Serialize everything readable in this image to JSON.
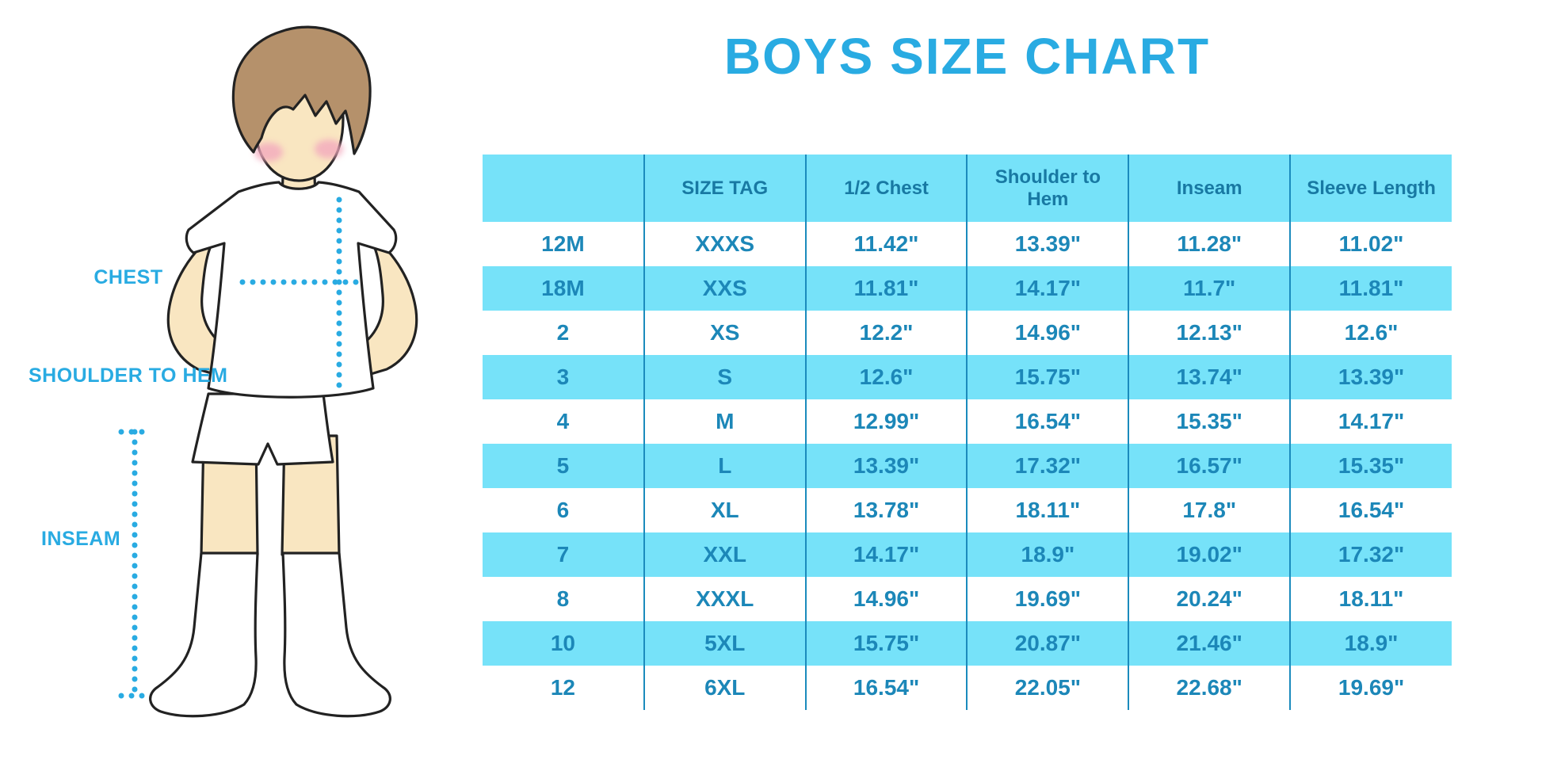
{
  "title": "BOYS SIZE CHART",
  "colors": {
    "accent": "#29ABE2",
    "table_bg": "#76E2F9",
    "header_text": "#1879A3",
    "cell_text": "#1C87B8",
    "divider": "#1B8BBD",
    "skin": "#F9E6C1",
    "hair": "#B5916B",
    "blush": "#F3A9BE",
    "outline": "#222222"
  },
  "figure": {
    "labels": {
      "chest": "CHEST",
      "shoulder_to_hem": "SHOULDER TO HEM",
      "inseam": "INSEAM"
    }
  },
  "chart_data": {
    "type": "table",
    "title": "BOYS SIZE CHART",
    "columns": [
      "",
      "SIZE TAG",
      "1/2 Chest",
      "Shoulder to Hem",
      "Inseam",
      "Sleeve Length"
    ],
    "rows": [
      [
        "12M",
        "XXXS",
        "11.42\"",
        "13.39\"",
        "11.28\"",
        "11.02\""
      ],
      [
        "18M",
        "XXS",
        "11.81\"",
        "14.17\"",
        "11.7\"",
        "11.81\""
      ],
      [
        "2",
        "XS",
        "12.2\"",
        "14.96\"",
        "12.13\"",
        "12.6\""
      ],
      [
        "3",
        "S",
        "12.6\"",
        "15.75\"",
        "13.74\"",
        "13.39\""
      ],
      [
        "4",
        "M",
        "12.99\"",
        "16.54\"",
        "15.35\"",
        "14.17\""
      ],
      [
        "5",
        "L",
        "13.39\"",
        "17.32\"",
        "16.57\"",
        "15.35\""
      ],
      [
        "6",
        "XL",
        "13.78\"",
        "18.11\"",
        "17.8\"",
        "16.54\""
      ],
      [
        "7",
        "XXL",
        "14.17\"",
        "18.9\"",
        "19.02\"",
        "17.32\""
      ],
      [
        "8",
        "XXXL",
        "14.96\"",
        "19.69\"",
        "20.24\"",
        "18.11\""
      ],
      [
        "10",
        "5XL",
        "15.75\"",
        "20.87\"",
        "21.46\"",
        "18.9\""
      ],
      [
        "12",
        "6XL",
        "16.54\"",
        "22.05\"",
        "22.68\"",
        "19.69\""
      ]
    ]
  }
}
